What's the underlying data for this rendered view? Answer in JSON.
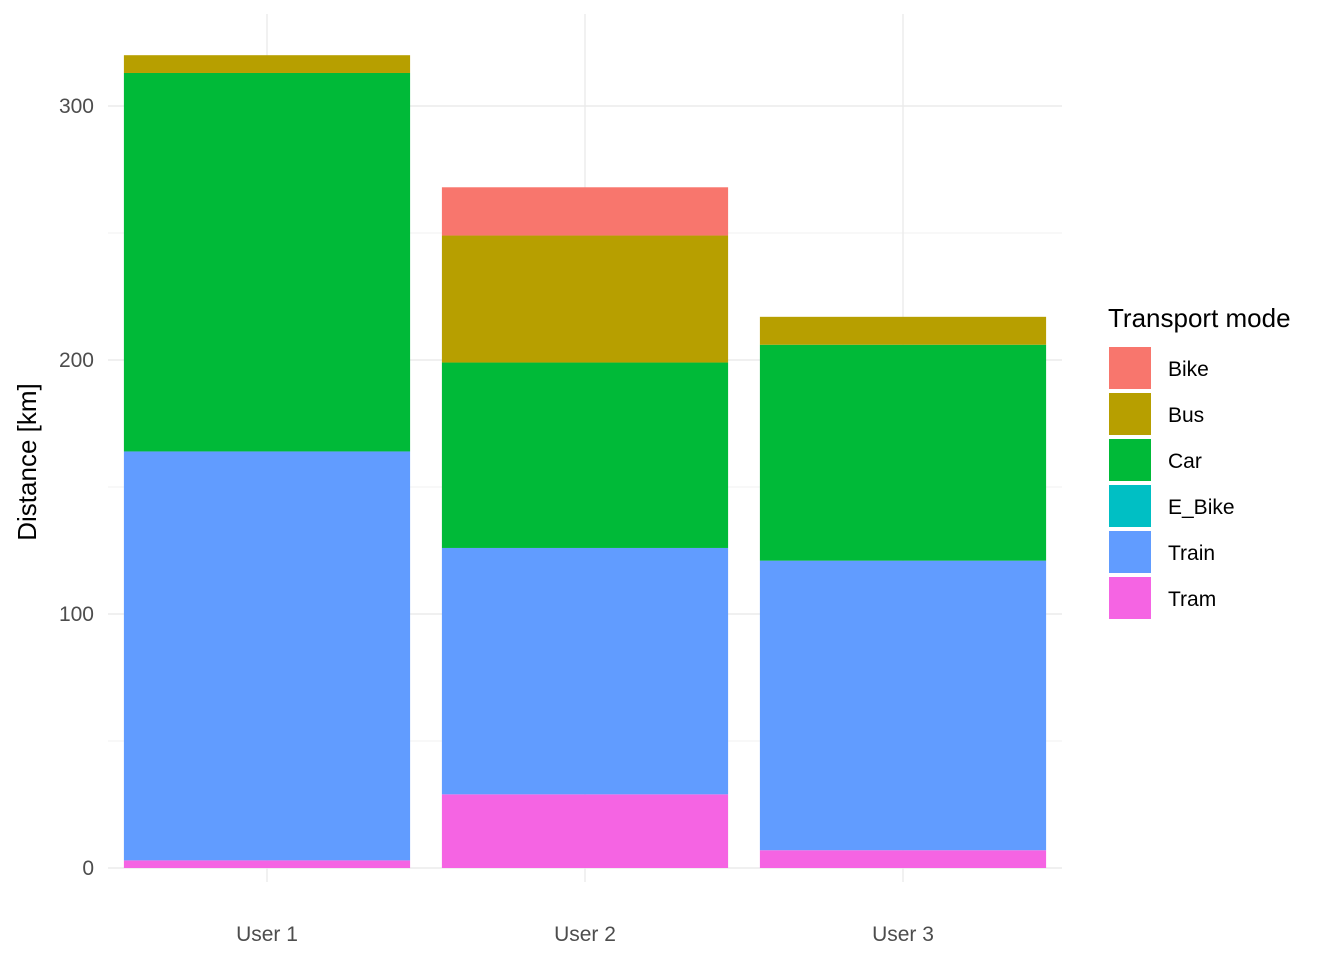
{
  "chart_data": {
    "type": "bar",
    "stacked": true,
    "categories": [
      "User 1",
      "User 2",
      "User 3"
    ],
    "series": [
      {
        "name": "Bike",
        "color": "#F8766D",
        "values": [
          0,
          19,
          0
        ]
      },
      {
        "name": "Bus",
        "color": "#B79F00",
        "values": [
          7,
          50,
          11
        ]
      },
      {
        "name": "Car",
        "color": "#00BA38",
        "values": [
          149,
          73,
          85
        ]
      },
      {
        "name": "E_Bike",
        "color": "#00BFC4",
        "values": [
          0,
          0,
          0
        ]
      },
      {
        "name": "Train",
        "color": "#619CFF",
        "values": [
          161,
          97,
          114
        ]
      },
      {
        "name": "Tram",
        "color": "#F564E3",
        "values": [
          3,
          29,
          7
        ]
      }
    ],
    "stack_order_bottom_to_top": [
      "Tram",
      "Train",
      "E_Bike",
      "Car",
      "Bus",
      "Bike"
    ],
    "ylabel": "Distance [km]",
    "xlabel": "",
    "yticks": [
      0,
      100,
      200,
      300
    ],
    "ylim": [
      -13,
      336
    ],
    "grid": true,
    "legend": {
      "title": "Transport mode",
      "position": "right"
    }
  }
}
